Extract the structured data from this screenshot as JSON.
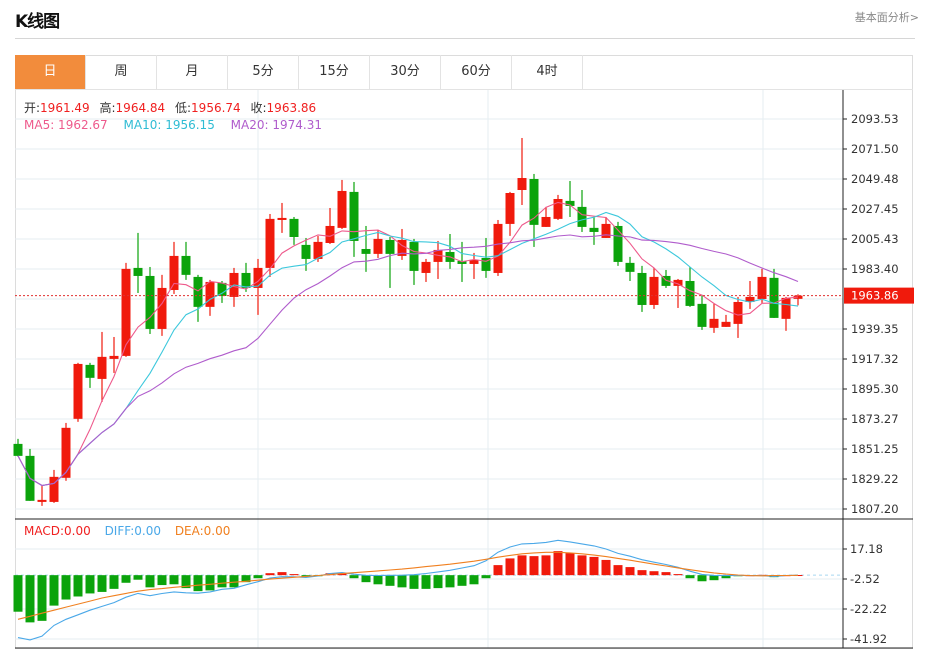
{
  "header": {
    "title": "K线图",
    "link": "基本面分析>"
  },
  "tabs": [
    {
      "label": "日",
      "active": true
    },
    {
      "label": "周"
    },
    {
      "label": "月"
    },
    {
      "label": "5分"
    },
    {
      "label": "15分"
    },
    {
      "label": "30分"
    },
    {
      "label": "60分"
    },
    {
      "label": "4时"
    }
  ],
  "ohlc": {
    "open_label": "开:",
    "open": "1961.49",
    "high_label": "高:",
    "high": "1964.84",
    "low_label": "低:",
    "low": "1956.74",
    "close_label": "收:",
    "close": "1963.86"
  },
  "ma": {
    "ma5_label": "MA5: 1962.67",
    "ma10_label": "MA10: 1956.15",
    "ma20_label": "MA20: 1974.31"
  },
  "macd_legend": {
    "macd": "MACD:0.00",
    "diff": "DIFF:0.00",
    "dea": "DEA:0.00"
  },
  "colors": {
    "up": "#f01a0c",
    "down": "#0ba30b",
    "ma5": "#ee5a8c",
    "ma10": "#3cc8dc",
    "ma20": "#b05ccc",
    "diff": "#4aa8e8",
    "dea": "#f08020",
    "accent": "#f28c3c"
  },
  "chart_data": {
    "type": "candlestick",
    "price_axis": {
      "ticks": [
        "2093.53",
        "2071.50",
        "2049.48",
        "2027.45",
        "2005.43",
        "1983.40",
        "1939.35",
        "1917.32",
        "1895.30",
        "1873.27",
        "1851.25",
        "1829.22",
        "1807.20"
      ],
      "range": [
        1807.2,
        2093.53
      ],
      "current": "1963.86"
    },
    "macd_axis": {
      "ticks": [
        "17.18",
        "-2.52",
        "-22.22",
        "-41.92"
      ],
      "range": [
        -41.92,
        17.18
      ]
    },
    "candles": [
      [
        1855.0,
        1846.2,
        1858.7,
        1845.5
      ],
      [
        1846.2,
        1813.2,
        1851.3,
        1813.2
      ],
      [
        1812.4,
        1813.9,
        1824.2,
        1809.5
      ],
      [
        1812.4,
        1830.8,
        1835.9,
        1811.7
      ],
      [
        1830.1,
        1866.8,
        1870.4,
        1827.9
      ],
      [
        1873.4,
        1913.7,
        1914.5,
        1871.2
      ],
      [
        1913.0,
        1903.5,
        1914.5,
        1896.1
      ],
      [
        1902.7,
        1918.9,
        1937.2,
        1885.8
      ],
      [
        1917.4,
        1919.6,
        1933.5,
        1907.1
      ],
      [
        1919.6,
        1983.5,
        1987.9,
        1918.9
      ],
      [
        1984.2,
        1978.3,
        2009.9,
        1965.8
      ],
      [
        1978.3,
        1939.4,
        1984.9,
        1935.7
      ],
      [
        1939.4,
        1969.5,
        1979.1,
        1934.3
      ],
      [
        1968.0,
        1993.0,
        2003.3,
        1965.1
      ],
      [
        1993.0,
        1979.1,
        2003.3,
        1975.4
      ],
      [
        1977.6,
        1955.6,
        1979.1,
        1944.6
      ],
      [
        1955.6,
        1973.9,
        1975.4,
        1949.0
      ],
      [
        1973.2,
        1963.6,
        1974.6,
        1958.5
      ],
      [
        1962.9,
        1980.5,
        1984.2,
        1955.6
      ],
      [
        1980.5,
        1969.5,
        1987.9,
        1966.6
      ],
      [
        1969.5,
        1984.2,
        1990.8,
        1949.7
      ],
      [
        1984.2,
        2020.2,
        2023.8,
        1977.6
      ],
      [
        2019.4,
        2020.9,
        2031.9,
        2009.9
      ],
      [
        2020.2,
        2006.9,
        2021.6,
        2001.1
      ],
      [
        2001.1,
        1990.8,
        2006.2,
        1982.0
      ],
      [
        1990.8,
        2003.3,
        2007.7,
        1988.6
      ],
      [
        2002.5,
        2015.0,
        2028.2,
        2001.8
      ],
      [
        2013.6,
        2040.7,
        2048.8,
        2012.8
      ],
      [
        2040.0,
        2004.0,
        2047.3,
        1992.3
      ],
      [
        1998.1,
        1994.5,
        2015.0,
        1981.3
      ],
      [
        1994.5,
        2005.5,
        2012.1,
        1991.5
      ],
      [
        2004.7,
        1994.5,
        2006.9,
        1969.5
      ],
      [
        1993.0,
        2004.7,
        2012.8,
        1990.1
      ],
      [
        2003.3,
        1982.0,
        2005.5,
        1971.7
      ],
      [
        1980.5,
        1988.6,
        1990.8,
        1973.9
      ],
      [
        1988.6,
        1997.4,
        2004.0,
        1976.1
      ],
      [
        1995.9,
        1988.6,
        2009.1,
        1983.5
      ],
      [
        1989.3,
        1987.1,
        2003.3,
        1973.9
      ],
      [
        1987.1,
        1990.1,
        1995.2,
        1976.1
      ],
      [
        1991.5,
        1982.0,
        2006.2,
        1976.9
      ],
      [
        1980.5,
        2016.5,
        2019.4,
        1978.3
      ],
      [
        2016.5,
        2039.2,
        2040.0,
        2007.7
      ],
      [
        2041.4,
        2050.2,
        2079.6,
        2030.4
      ],
      [
        2049.5,
        2015.8,
        2053.2,
        1999.6
      ],
      [
        2014.3,
        2021.6,
        2029.0,
        2014.3
      ],
      [
        2020.2,
        2034.8,
        2037.8,
        2019.4
      ],
      [
        2033.4,
        2029.7,
        2048.0,
        2021.6
      ],
      [
        2029.0,
        2014.3,
        2041.4,
        2010.6
      ],
      [
        2013.6,
        2010.6,
        2021.6,
        2001.1
      ],
      [
        2006.2,
        2016.5,
        2021.6,
        2006.2
      ],
      [
        2015.0,
        1988.6,
        2018.0,
        1985.7
      ],
      [
        1987.9,
        1981.3,
        1992.3,
        1974.6
      ],
      [
        1980.5,
        1957.0,
        1985.7,
        1951.9
      ],
      [
        1957.0,
        1977.6,
        1984.2,
        1954.1
      ],
      [
        1978.3,
        1971.0,
        1982.7,
        1969.5
      ],
      [
        1971.0,
        1975.4,
        1976.1,
        1954.8
      ],
      [
        1974.6,
        1956.3,
        1984.9,
        1955.6
      ],
      [
        1957.8,
        1940.9,
        1964.4,
        1938.7
      ],
      [
        1940.2,
        1946.8,
        1957.8,
        1936.5
      ],
      [
        1940.9,
        1944.6,
        1949.7,
        1940.9
      ],
      [
        1943.1,
        1959.2,
        1962.9,
        1932.8
      ],
      [
        1959.2,
        1962.9,
        1974.6,
        1954.1
      ],
      [
        1961.4,
        1977.6,
        1983.5,
        1958.5
      ],
      [
        1976.9,
        1947.5,
        1983.5,
        1947.5
      ],
      [
        1946.8,
        1962.2,
        1962.9,
        1938.0
      ],
      [
        1961.49,
        1963.86,
        1964.84,
        1956.74
      ]
    ],
    "macd_hist": [
      -24,
      -31,
      -30,
      -20,
      -16,
      -14,
      -12,
      -11,
      -9,
      -5,
      -3,
      -8,
      -6.5,
      -6,
      -8.5,
      -10.5,
      -10,
      -8,
      -8,
      -4.6,
      -2,
      1.3,
      2,
      0.7,
      -1.3,
      -0.7,
      1.3,
      1.3,
      -2,
      -4.6,
      -6,
      -7,
      -8,
      -9,
      -9,
      -8.5,
      -8,
      -7,
      -6,
      -2,
      6.6,
      11,
      13,
      12.5,
      13,
      15.8,
      14.5,
      13,
      12,
      10,
      6.6,
      5.3,
      3.3,
      2.6,
      2,
      0.7,
      -2,
      -4,
      -3.3,
      -2,
      -0.7,
      0,
      0.2,
      -1.3,
      0,
      0.1
    ],
    "dea": [
      -29,
      -27,
      -25,
      -23,
      -21,
      -19,
      -17,
      -15,
      -13.5,
      -12,
      -10.5,
      -9.5,
      -8.8,
      -8,
      -7.3,
      -6.6,
      -6,
      -5.3,
      -4.6,
      -4,
      -3.3,
      -2.6,
      -2,
      -1.4,
      -0.8,
      -0.2,
      0.4,
      1,
      1.6,
      2.2,
      2.8,
      3.4,
      4,
      4.8,
      5.6,
      6.4,
      7.2,
      8.2,
      9.2,
      10.4,
      11.8,
      13,
      14,
      14.6,
      15,
      15,
      14.6,
      14,
      13.2,
      12.2,
      11,
      9.8,
      8.5,
      7.2,
      6,
      4.8,
      3.6,
      2.5,
      1.5,
      0.7,
      0.1,
      -0.3,
      -0.4,
      -0.3,
      -0.2,
      -0.1
    ]
  }
}
